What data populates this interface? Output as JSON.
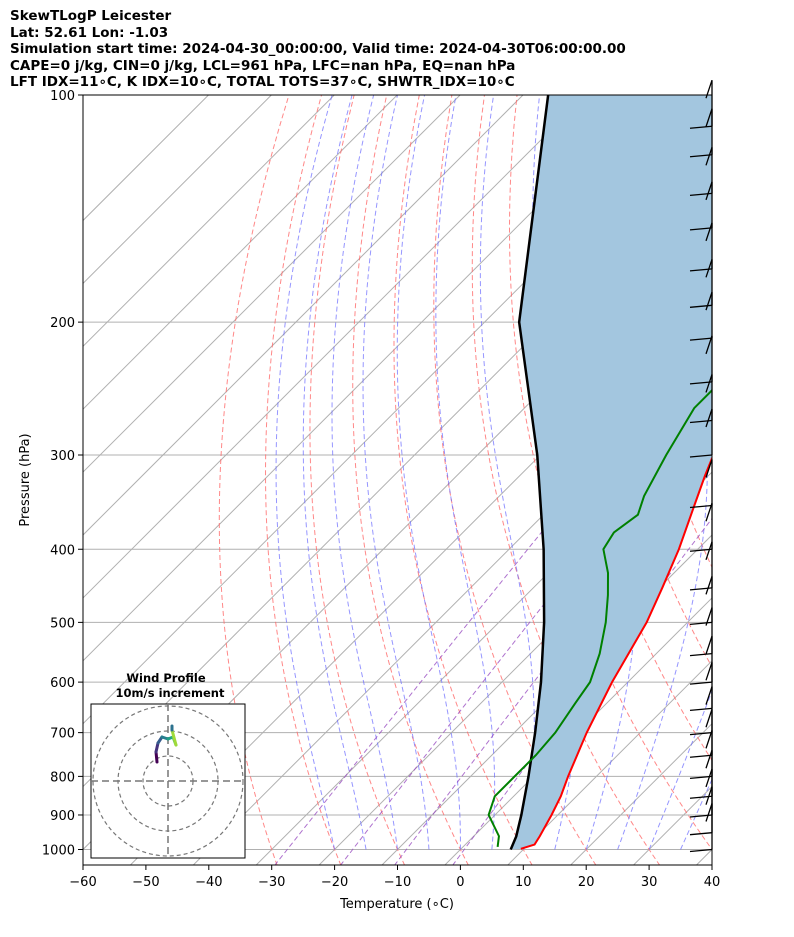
{
  "header": {
    "line1": "SkewTLogP Leicester",
    "line2": "Lat: 52.61   Lon: -1.03",
    "line3": "Simulation start time: 2024-04-30_00:00:00, Valid time: 2024-04-30T06:00:00.00",
    "line4": "CAPE=0 j/kg, CIN=0 j/kg, LCL=961 hPa, LFC=nan hPa, EQ=nan hPa",
    "line5": "LFT IDX=11∘C, K IDX=10∘C, TOTAL TOTS=37∘C, SHWTR_IDX=10∘C"
  },
  "chart_data": {
    "type": "line",
    "xlabel": "Temperature (∘C)",
    "ylabel": "Pressure (hPa)",
    "xlim": [
      -60,
      40
    ],
    "ylim": [
      1050,
      100
    ],
    "y_scale": "log",
    "x_ticks": [
      -60,
      -50,
      -40,
      -30,
      -20,
      -10,
      0,
      10,
      20,
      30,
      40
    ],
    "y_ticks": [
      1000,
      900,
      800,
      700,
      600,
      500,
      400,
      300,
      200,
      100
    ],
    "grid": true,
    "skew": "temperature axis skewed 45 degrees",
    "colors": {
      "temperature": "#ff0000",
      "dewpoint": "#008000",
      "parcel": "#000000",
      "fill": "#a3c6df",
      "dry_adiabats": "#ff6a6a",
      "moist_adiabats": "#6a6aff",
      "mixing_ratio": "#9a4fc2",
      "isotherms": "#b0b0b0"
    },
    "series": [
      {
        "key": "temperature",
        "points": [
          [
            998,
            9.5
          ],
          [
            985,
            11
          ],
          [
            960,
            10.5
          ],
          [
            900,
            9
          ],
          [
            850,
            7.5
          ],
          [
            800,
            5.5
          ],
          [
            700,
            1.5
          ],
          [
            600,
            -2.5
          ],
          [
            500,
            -6.5
          ],
          [
            450,
            -9.5
          ],
          [
            400,
            -13
          ],
          [
            350,
            -17.5
          ],
          [
            320,
            -20.5
          ],
          [
            300,
            -22.5
          ],
          [
            280,
            -24
          ],
          [
            250,
            -27
          ],
          [
            238,
            -28
          ],
          [
            220,
            -30
          ],
          [
            200,
            -33
          ],
          [
            180,
            -37
          ],
          [
            170,
            -40
          ],
          [
            160,
            -43
          ],
          [
            150,
            -46
          ],
          [
            140,
            -49.5
          ],
          [
            130,
            -53
          ],
          [
            120,
            -57
          ],
          [
            110,
            -61.5
          ],
          [
            100,
            -66
          ]
        ]
      },
      {
        "key": "dewpoint",
        "points": [
          [
            992,
            5.5
          ],
          [
            960,
            4
          ],
          [
            900,
            -1
          ],
          [
            850,
            -3
          ],
          [
            800,
            -3
          ],
          [
            750,
            -3
          ],
          [
            700,
            -3.5
          ],
          [
            640,
            -5
          ],
          [
            600,
            -6
          ],
          [
            550,
            -9
          ],
          [
            500,
            -13
          ],
          [
            460,
            -17
          ],
          [
            430,
            -20.5
          ],
          [
            400,
            -25
          ],
          [
            380,
            -26
          ],
          [
            360,
            -25
          ],
          [
            340,
            -27
          ],
          [
            300,
            -30
          ],
          [
            260,
            -33
          ],
          [
            240,
            -33
          ],
          [
            215,
            -33
          ],
          [
            200,
            -36
          ],
          [
            180,
            -45
          ],
          [
            175,
            -49.5
          ],
          [
            150,
            -54
          ],
          [
            120,
            -62
          ],
          [
            100,
            -68
          ]
        ]
      },
      {
        "key": "parcel",
        "points": [
          [
            1000,
            8
          ],
          [
            961,
            6.8
          ],
          [
            900,
            4.2
          ],
          [
            800,
            -0.8
          ],
          [
            700,
            -6.7
          ],
          [
            600,
            -13.8
          ],
          [
            500,
            -22.8
          ],
          [
            400,
            -34.5
          ],
          [
            300,
            -50.5
          ],
          [
            200,
            -74.5
          ],
          [
            100,
            -106
          ]
        ]
      }
    ],
    "wind_barbs": [
      {
        "p": 1000
      },
      {
        "p": 950
      },
      {
        "p": 900
      },
      {
        "p": 850
      },
      {
        "p": 800
      },
      {
        "p": 750
      },
      {
        "p": 700
      },
      {
        "p": 650
      },
      {
        "p": 600
      },
      {
        "p": 550
      },
      {
        "p": 500
      },
      {
        "p": 450
      },
      {
        "p": 400
      },
      {
        "p": 350
      },
      {
        "p": 300
      },
      {
        "p": 270
      },
      {
        "p": 240
      },
      {
        "p": 210
      },
      {
        "p": 190
      },
      {
        "p": 170
      },
      {
        "p": 150
      },
      {
        "p": 135
      },
      {
        "p": 120
      },
      {
        "p": 110
      }
    ],
    "hodograph": {
      "title": "Wind Profile",
      "subtitle": "10m/s increment",
      "rings": [
        1,
        2,
        3
      ]
    }
  }
}
